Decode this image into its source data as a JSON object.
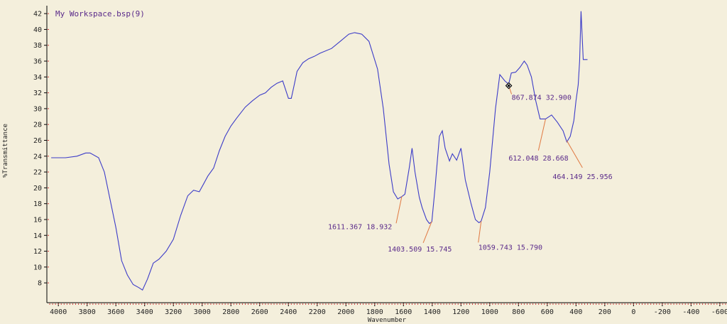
{
  "chart_data": {
    "type": "line",
    "title": "My Workspace.bsp(9)",
    "xlabel": "Wavenumber",
    "ylabel": "%Transmittance",
    "xlim": [
      4080,
      -650
    ],
    "ylim": [
      5.5,
      43
    ],
    "x_reversed": true,
    "xticks": [
      4000,
      3800,
      3600,
      3400,
      3200,
      3000,
      2800,
      2600,
      2400,
      2200,
      2000,
      1800,
      1600,
      1400,
      1200,
      1000,
      800,
      600,
      400,
      200,
      0,
      -200,
      -400,
      -600
    ],
    "xtick_labels": [
      "4000",
      "3800",
      "3600",
      "3400",
      "3200",
      "3000",
      "2800",
      "2600",
      "2400",
      "2200",
      "2000",
      "1800",
      "1600",
      "1400",
      "1200",
      "1000",
      "800",
      "600",
      "400",
      "200",
      "0",
      "-200",
      "-400",
      "-600"
    ],
    "yticks": [
      8,
      10,
      12,
      14,
      16,
      18,
      20,
      22,
      24,
      26,
      28,
      30,
      32,
      34,
      36,
      38,
      40,
      42
    ],
    "ytick_labels": [
      "8",
      "10",
      "12",
      "14",
      "16",
      "18",
      "20",
      "22",
      "24",
      "26",
      "28",
      "30",
      "32",
      "34",
      "36",
      "38",
      "40",
      "42"
    ],
    "colors": {
      "line": "#3c3cc8",
      "leader": "#e07840",
      "annotation": "#5a2a8a",
      "background": "#f4efdc",
      "axis": "#000000",
      "tick_marks": "#d04040"
    },
    "series": [
      {
        "x": [
          4050,
          3950,
          3870,
          3810,
          3780,
          3720,
          3680,
          3640,
          3600,
          3560,
          3520,
          3480,
          3440,
          3415,
          3380,
          3340,
          3300,
          3250,
          3200,
          3150,
          3100,
          3060,
          3020,
          2990,
          2960,
          2920,
          2880,
          2840,
          2800,
          2760,
          2700,
          2650,
          2600,
          2560,
          2520,
          2480,
          2440,
          2400,
          2380,
          2360,
          2340,
          2300,
          2260,
          2220,
          2180,
          2100,
          2040,
          1980,
          1940,
          1890,
          1840,
          1780,
          1740,
          1700,
          1670,
          1640,
          1611,
          1590,
          1560,
          1540,
          1520,
          1490,
          1470,
          1440,
          1420,
          1403,
          1380,
          1350,
          1330,
          1310,
          1280,
          1260,
          1230,
          1200,
          1170,
          1130,
          1100,
          1075,
          1060,
          1030,
          1000,
          960,
          930,
          895,
          868,
          850,
          820,
          790,
          760,
          740,
          710,
          680,
          650,
          612,
          570,
          530,
          490,
          464,
          440,
          415,
          400,
          385,
          375,
          365,
          350,
          320
        ],
        "y": [
          23.8,
          23.8,
          24.0,
          24.4,
          24.4,
          23.8,
          22.0,
          18.5,
          15.0,
          10.8,
          9.0,
          7.8,
          7.4,
          7.1,
          8.5,
          10.5,
          11.0,
          12.0,
          13.5,
          16.5,
          19.0,
          19.7,
          19.5,
          20.5,
          21.5,
          22.5,
          24.7,
          26.5,
          27.8,
          28.8,
          30.2,
          31.0,
          31.7,
          32.0,
          32.7,
          33.2,
          33.5,
          31.3,
          31.3,
          33.0,
          34.7,
          35.8,
          36.3,
          36.6,
          37.0,
          37.6,
          38.5,
          39.4,
          39.6,
          39.4,
          38.5,
          35.0,
          30.0,
          23.0,
          19.5,
          18.6,
          18.9,
          19.2,
          22.5,
          25.0,
          22.0,
          18.8,
          17.5,
          16.0,
          15.5,
          15.7,
          20.0,
          26.5,
          27.2,
          25.0,
          23.4,
          24.3,
          23.5,
          25.0,
          21.0,
          18.0,
          16.0,
          15.6,
          15.8,
          17.5,
          22.0,
          30.0,
          34.3,
          33.5,
          33.1,
          34.5,
          34.6,
          35.2,
          36.0,
          35.5,
          34.0,
          31.0,
          28.7,
          28.7,
          29.2,
          28.3,
          27.2,
          25.8,
          26.5,
          28.5,
          31.0,
          33.0,
          36.0,
          42.3,
          36.2,
          36.2
        ]
      }
    ],
    "annotations": [
      {
        "x": 1611.367,
        "y": 18.932,
        "label": "1611.367   18.932"
      },
      {
        "x": 1403.509,
        "y": 15.745,
        "label": "1403.509   15.745"
      },
      {
        "x": 1059.743,
        "y": 15.79,
        "label": "1059.743   15.790"
      },
      {
        "x": 867.874,
        "y": 32.9,
        "label": "867.874   32.900"
      },
      {
        "x": 612.048,
        "y": 28.668,
        "label": "612.048   28.668"
      },
      {
        "x": 464.149,
        "y": 25.956,
        "label": "464.149   25.956"
      }
    ],
    "grid": false,
    "cursor_marker": {
      "x": 867.874,
      "y": 32.9
    }
  }
}
